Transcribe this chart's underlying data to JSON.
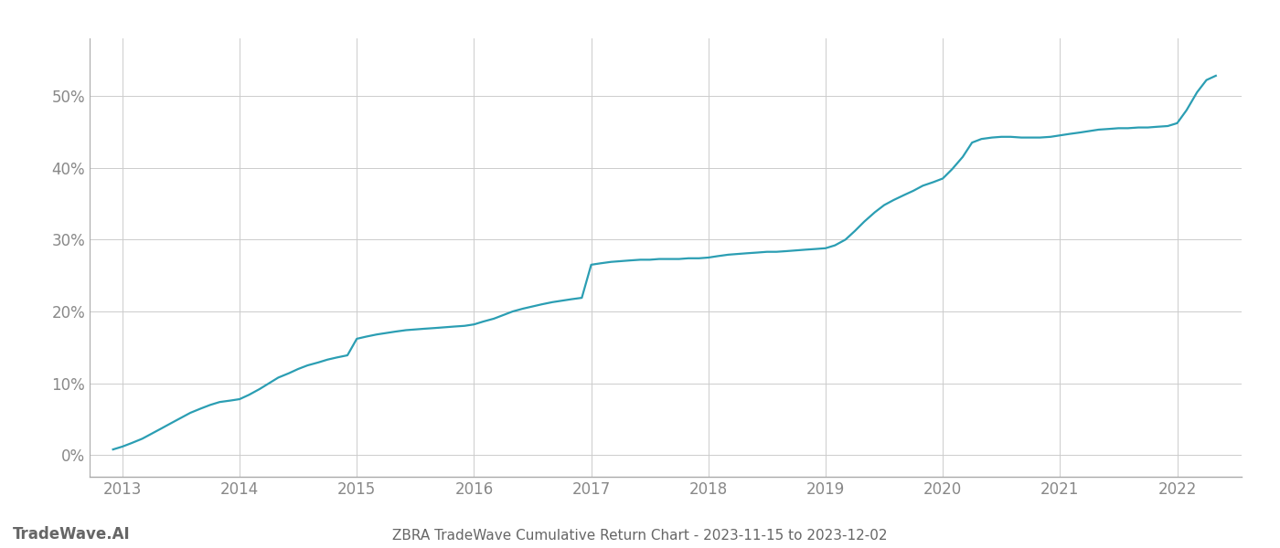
{
  "title": "ZBRA TradeWave Cumulative Return Chart - 2023-11-15 to 2023-12-02",
  "watermark": "TradeWave.AI",
  "line_color": "#2b9eb3",
  "background_color": "#ffffff",
  "grid_color": "#cccccc",
  "years": [
    2013,
    2014,
    2015,
    2016,
    2017,
    2018,
    2019,
    2020,
    2021,
    2022
  ],
  "x_values": [
    2012.92,
    2013.0,
    2013.08,
    2013.17,
    2013.25,
    2013.33,
    2013.42,
    2013.5,
    2013.58,
    2013.67,
    2013.75,
    2013.83,
    2013.92,
    2014.0,
    2014.08,
    2014.17,
    2014.25,
    2014.33,
    2014.42,
    2014.5,
    2014.58,
    2014.67,
    2014.75,
    2014.83,
    2014.92,
    2015.0,
    2015.08,
    2015.17,
    2015.25,
    2015.33,
    2015.42,
    2015.5,
    2015.58,
    2015.67,
    2015.75,
    2015.83,
    2015.92,
    2016.0,
    2016.08,
    2016.17,
    2016.25,
    2016.33,
    2016.42,
    2016.5,
    2016.58,
    2016.67,
    2016.75,
    2016.83,
    2016.92,
    2017.0,
    2017.08,
    2017.17,
    2017.25,
    2017.33,
    2017.42,
    2017.5,
    2017.58,
    2017.67,
    2017.75,
    2017.83,
    2017.92,
    2018.0,
    2018.08,
    2018.17,
    2018.25,
    2018.33,
    2018.42,
    2018.5,
    2018.58,
    2018.67,
    2018.75,
    2018.83,
    2018.92,
    2019.0,
    2019.08,
    2019.17,
    2019.25,
    2019.33,
    2019.42,
    2019.5,
    2019.58,
    2019.67,
    2019.75,
    2019.83,
    2019.92,
    2020.0,
    2020.08,
    2020.17,
    2020.25,
    2020.33,
    2020.42,
    2020.5,
    2020.58,
    2020.67,
    2020.75,
    2020.83,
    2020.92,
    2021.0,
    2021.08,
    2021.17,
    2021.25,
    2021.33,
    2021.42,
    2021.5,
    2021.58,
    2021.67,
    2021.75,
    2021.83,
    2021.92,
    2022.0,
    2022.08,
    2022.17,
    2022.25,
    2022.33
  ],
  "y_values": [
    0.8,
    1.2,
    1.7,
    2.3,
    3.0,
    3.7,
    4.5,
    5.2,
    5.9,
    6.5,
    7.0,
    7.4,
    7.6,
    7.8,
    8.4,
    9.2,
    10.0,
    10.8,
    11.4,
    12.0,
    12.5,
    12.9,
    13.3,
    13.6,
    13.9,
    16.2,
    16.5,
    16.8,
    17.0,
    17.2,
    17.4,
    17.5,
    17.6,
    17.7,
    17.8,
    17.9,
    18.0,
    18.2,
    18.6,
    19.0,
    19.5,
    20.0,
    20.4,
    20.7,
    21.0,
    21.3,
    21.5,
    21.7,
    21.9,
    26.5,
    26.7,
    26.9,
    27.0,
    27.1,
    27.2,
    27.2,
    27.3,
    27.3,
    27.3,
    27.4,
    27.4,
    27.5,
    27.7,
    27.9,
    28.0,
    28.1,
    28.2,
    28.3,
    28.3,
    28.4,
    28.5,
    28.6,
    28.7,
    28.8,
    29.2,
    30.0,
    31.2,
    32.5,
    33.8,
    34.8,
    35.5,
    36.2,
    36.8,
    37.5,
    38.0,
    38.5,
    39.8,
    41.5,
    43.5,
    44.0,
    44.2,
    44.3,
    44.3,
    44.2,
    44.2,
    44.2,
    44.3,
    44.5,
    44.7,
    44.9,
    45.1,
    45.3,
    45.4,
    45.5,
    45.5,
    45.6,
    45.6,
    45.7,
    45.8,
    46.2,
    48.0,
    50.5,
    52.2,
    52.8
  ],
  "ylim": [
    -3,
    58
  ],
  "yticks": [
    0,
    10,
    20,
    30,
    40,
    50
  ],
  "title_fontsize": 11,
  "tick_fontsize": 12,
  "watermark_fontsize": 12,
  "line_width": 1.6,
  "tick_color": "#888888",
  "title_color": "#666666"
}
